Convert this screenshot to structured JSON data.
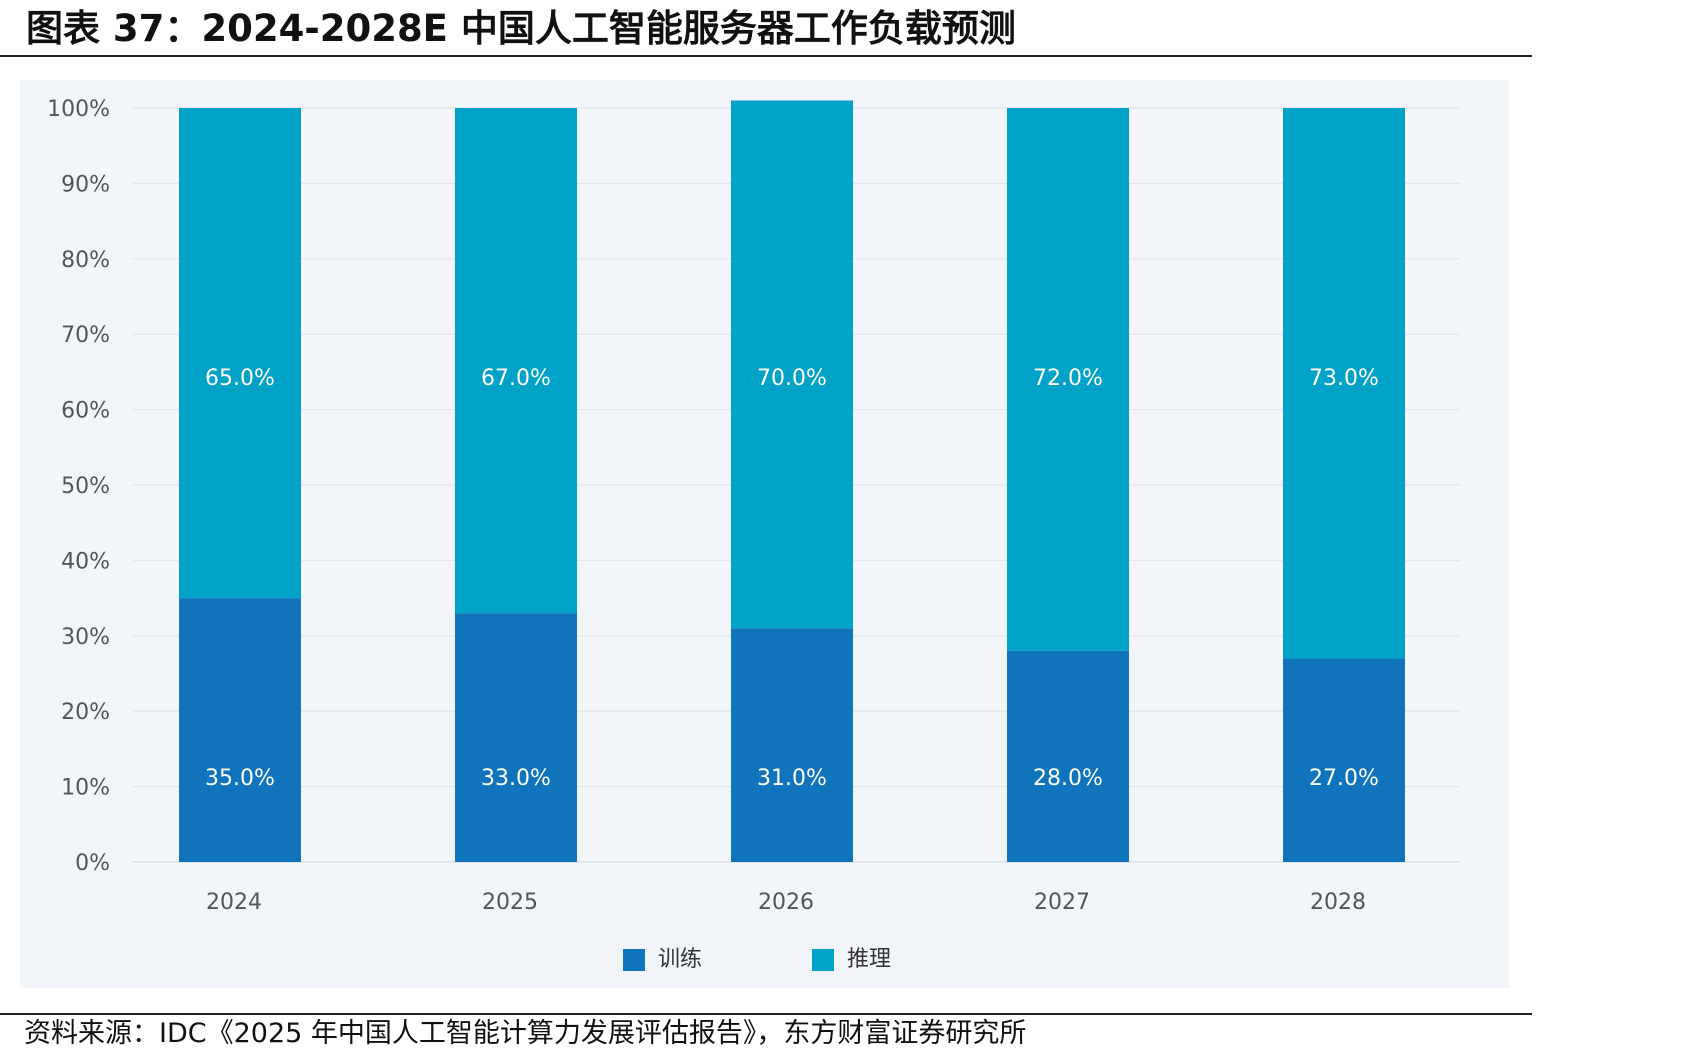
{
  "title": "图表 37：2024-2028E 中国人工智能服务器工作负载预测",
  "source": "资料来源：IDC《2025 年中国人工智能计算力发展评估报告》，东方财富证券研究所",
  "colors": {
    "training": "#0f74bb",
    "inference": "#00a2c8",
    "panel_bg": "#f2f6fb",
    "grid": "#dfe3e8"
  },
  "legend": {
    "training_label": "训练",
    "inference_label": "推理"
  },
  "chart_data": {
    "type": "bar",
    "stacked": true,
    "percent": true,
    "categories": [
      "2024",
      "2025",
      "2026",
      "2027",
      "2028"
    ],
    "series": [
      {
        "name": "训练",
        "values": [
          35,
          33,
          31,
          28,
          27
        ],
        "labels": [
          "35.0%",
          "33.0%",
          "31.0%",
          "28.0%",
          "27.0%"
        ]
      },
      {
        "name": "推理",
        "values": [
          65,
          67,
          70,
          72,
          73
        ],
        "labels": [
          "65.0%",
          "67.0%",
          "70.0%",
          "72.0%",
          "73.0%"
        ]
      }
    ],
    "ylim": [
      0,
      100
    ],
    "yticks": [
      "0%",
      "10%",
      "20%",
      "30%",
      "40%",
      "50%",
      "60%",
      "70%",
      "80%",
      "90%",
      "100%"
    ],
    "grid": true,
    "legend_position": "bottom"
  }
}
